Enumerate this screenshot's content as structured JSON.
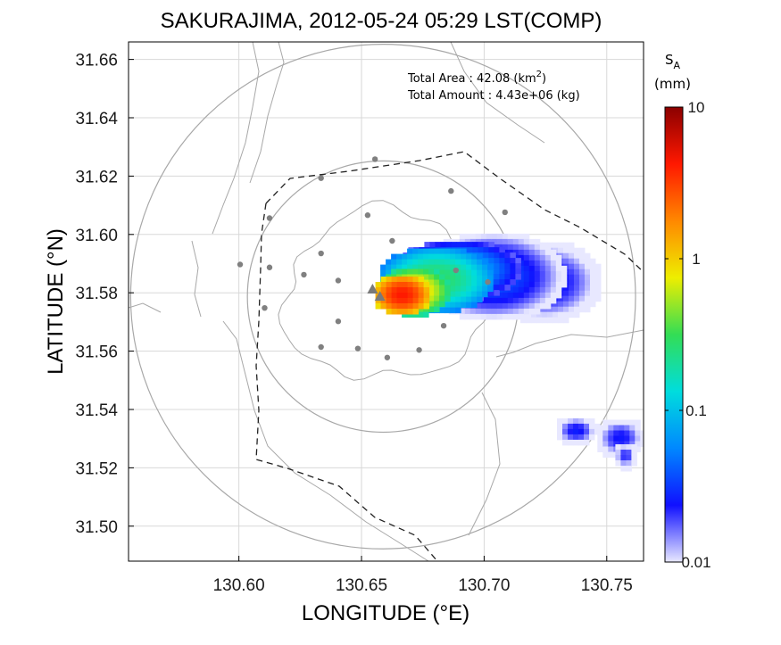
{
  "chart_data": {
    "type": "heatmap",
    "title": "SAKURAJIMA, 2012-05-24 05:29 LST(COMP)",
    "xlabel": "LONGITUDE (°E)",
    "ylabel": "LATITUDE (°N)",
    "xlim": [
      130.555,
      130.765
    ],
    "ylim": [
      31.488,
      31.666
    ],
    "xticks": [
      130.6,
      130.65,
      130.7,
      130.75
    ],
    "xtick_labels": [
      "130.60",
      "130.65",
      "130.70",
      "130.75"
    ],
    "yticks": [
      31.5,
      31.52,
      31.54,
      31.56,
      31.58,
      31.6,
      31.62,
      31.64,
      31.66
    ],
    "ytick_labels": [
      "31.50",
      "31.52",
      "31.54",
      "31.56",
      "31.58",
      "31.60",
      "31.62",
      "31.64",
      "31.66"
    ],
    "grid": true,
    "annotation": {
      "area_label": "Total Area   : 42.08 (km",
      "area_sup": "2",
      "area_close": ")",
      "amount_label": "Total Amount : 4.43e+06 (kg)"
    },
    "colorbar": {
      "label_main": "S",
      "label_sub": "A",
      "label_unit": "(mm)",
      "scale": "log",
      "range": [
        0.01,
        10
      ],
      "ticks": [
        0.01,
        0.1,
        1,
        10
      ],
      "tick_labels": [
        "0.01",
        "0.1",
        "1",
        "10"
      ],
      "colors": [
        "#e8e8ff",
        "#1010ff",
        "#0088ff",
        "#00dddd",
        "#33dd55",
        "#eeee00",
        "#ff8800",
        "#ff1800",
        "#8b0000"
      ]
    },
    "crater_markers": [
      {
        "lon": 130.6545,
        "lat": 31.5813
      },
      {
        "lon": 130.6575,
        "lat": 31.5788
      }
    ],
    "stations": [
      {
        "lon": 130.6555,
        "lat": 31.6258
      },
      {
        "lon": 130.6335,
        "lat": 31.6193
      },
      {
        "lon": 130.6865,
        "lat": 31.6149
      },
      {
        "lon": 130.6125,
        "lat": 31.6056
      },
      {
        "lon": 130.6525,
        "lat": 31.6066
      },
      {
        "lon": 130.7085,
        "lat": 31.6076
      },
      {
        "lon": 130.6625,
        "lat": 31.5978
      },
      {
        "lon": 130.6005,
        "lat": 31.5897
      },
      {
        "lon": 130.6125,
        "lat": 31.5887
      },
      {
        "lon": 130.6335,
        "lat": 31.5935
      },
      {
        "lon": 130.6265,
        "lat": 31.5862
      },
      {
        "lon": 130.6405,
        "lat": 31.5842
      },
      {
        "lon": 130.6885,
        "lat": 31.5877
      },
      {
        "lon": 130.7015,
        "lat": 31.5837
      },
      {
        "lon": 130.6105,
        "lat": 31.5748
      },
      {
        "lon": 130.6405,
        "lat": 31.5702
      },
      {
        "lon": 130.6835,
        "lat": 31.5687
      },
      {
        "lon": 130.6335,
        "lat": 31.5614
      },
      {
        "lon": 130.6485,
        "lat": 31.5609
      },
      {
        "lon": 130.6735,
        "lat": 31.5604
      },
      {
        "lon": 130.6605,
        "lat": 31.5578
      }
    ],
    "radar_range_circles": [
      {
        "center_lon": 130.6588,
        "center_lat": 31.5787,
        "radius_deg_lat": 0.0465
      },
      {
        "center_lon": 130.6588,
        "center_lat": 31.5787,
        "radius_deg_lat": 0.0865
      }
    ],
    "plume": {
      "source": {
        "lon": 130.6655,
        "lat": 31.5802
      },
      "peak_mm": 4.5,
      "body": [
        {
          "lon": 130.6655,
          "lat": 31.5802,
          "ulon": 0.012,
          "ulat": 0.0072,
          "mm": 4.2
        },
        {
          "lon": 130.6705,
          "lat": 31.5815,
          "ulon": 0.015,
          "ulat": 0.0085,
          "mm": 1.0
        },
        {
          "lon": 130.6795,
          "lat": 31.5855,
          "ulon": 0.024,
          "ulat": 0.0115,
          "mm": 0.28
        },
        {
          "lon": 130.6885,
          "lat": 31.5888,
          "ulon": 0.026,
          "ulat": 0.0105,
          "mm": 0.085
        },
        {
          "lon": 130.7025,
          "lat": 31.5866,
          "ulon": 0.03,
          "ulat": 0.0155,
          "mm": 0.04
        },
        {
          "lon": 130.7235,
          "lat": 31.5846,
          "ulon": 0.024,
          "ulat": 0.0145,
          "mm": 0.03
        }
      ],
      "patch": [
        {
          "lon": 130.7365,
          "lat": 31.5336,
          "ulon": 0.009,
          "ulat": 0.0052,
          "mm": 0.026
        },
        {
          "lon": 130.7545,
          "lat": 31.5311,
          "ulon": 0.0105,
          "ulat": 0.0072,
          "mm": 0.025
        },
        {
          "lon": 130.7565,
          "lat": 31.5251,
          "ulon": 0.0052,
          "ulat": 0.0048,
          "mm": 0.022
        }
      ]
    }
  }
}
